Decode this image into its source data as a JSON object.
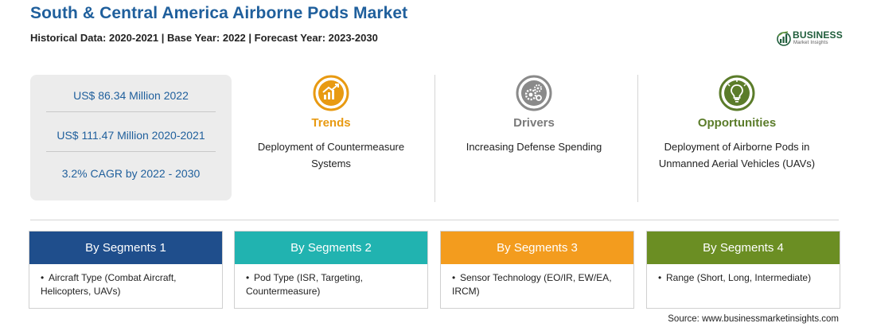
{
  "header": {
    "title": "South & Central America Airborne Pods Market",
    "subtitle": "Historical Data: 2020-2021 | Base Year: 2022 | Forecast Year: 2023-2030"
  },
  "logo": {
    "word": "BUSINESS",
    "sub": "Market Insights",
    "icon": "globe-chart-icon"
  },
  "stats": [
    "US$ 86.34 Million 2022",
    "US$ 111.47 Million 2020-2021",
    "3.2% CAGR by 2022 - 2030"
  ],
  "features": [
    {
      "title": "Trends",
      "desc": "Deployment of Countermeasure Systems",
      "icon": "trend-chart-icon",
      "color": "#e89a12"
    },
    {
      "title": "Drivers",
      "desc": "Increasing Defense Spending",
      "icon": "gears-icon",
      "color": "#7a7a7a"
    },
    {
      "title": "Opportunities",
      "desc": "Deployment of Airborne Pods in Unmanned Aerial Vehicles (UAVs)",
      "icon": "lightbulb-icon",
      "color": "#5b7c2a"
    }
  ],
  "segments": [
    {
      "label": "By Segments 1",
      "item": "Aircraft Type (Combat Aircraft, Helicopters, UAVs)",
      "color": "#1f4e8c"
    },
    {
      "label": "By Segments 2",
      "item": "Pod Type (ISR, Targeting, Countermeasure)",
      "color": "#21b3b0"
    },
    {
      "label": "By Segments 3",
      "item": "Sensor Technology (EO/IR, EW/EA, IRCM)",
      "color": "#f39c1e"
    },
    {
      "label": "By Segments 4",
      "item": "Range (Short, Long, Intermediate)",
      "color": "#6b8e23"
    }
  ],
  "bullet": "•",
  "source": "Source: www.businessmarketinsights.com"
}
